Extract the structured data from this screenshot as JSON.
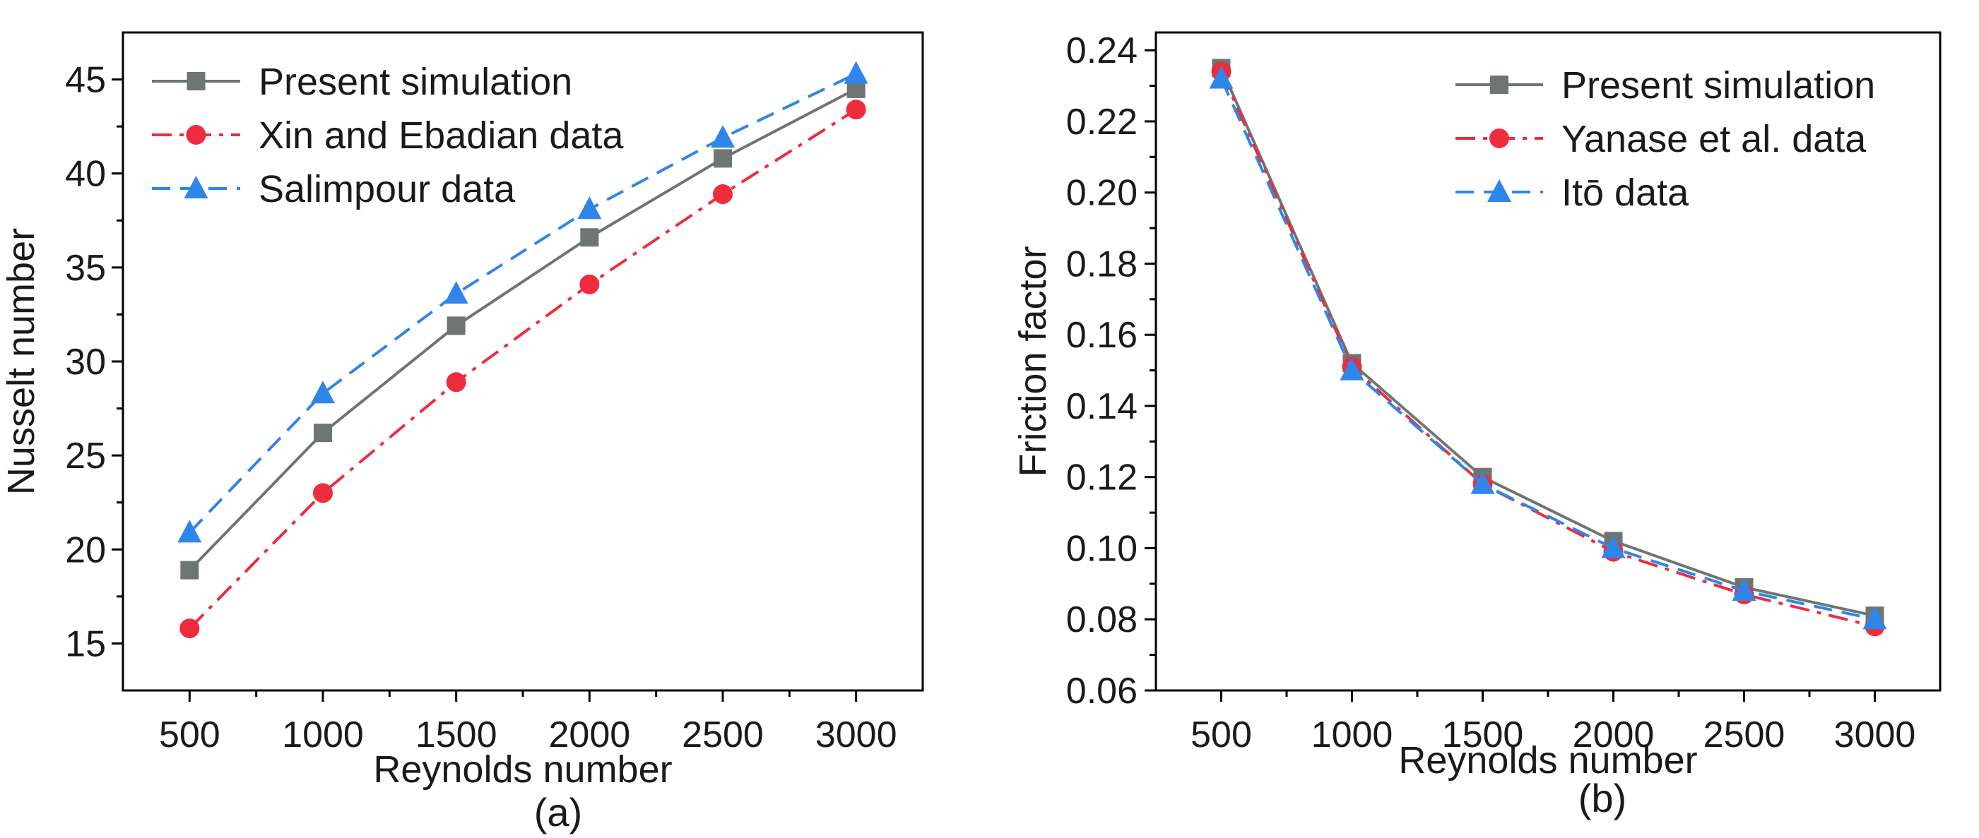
{
  "colors": {
    "present": "#6e7572",
    "red": "#ee2c3d",
    "blue": "#2f86ea",
    "axis": "#000000"
  },
  "chart_data": [
    {
      "type": "line",
      "panel_label": "(a)",
      "xlabel": "Reynolds number",
      "ylabel": "Nusselt number",
      "x": [
        500,
        1000,
        1500,
        2000,
        2500,
        3000
      ],
      "xlim": [
        250,
        3250
      ],
      "ylim": [
        12.5,
        47.5
      ],
      "x_ticks": [
        "500",
        "1000",
        "1500",
        "2000",
        "2500",
        "3000"
      ],
      "y_ticks": [
        "15",
        "20",
        "25",
        "30",
        "35",
        "40",
        "45"
      ],
      "legend_position": "top-left",
      "grid": false,
      "series": [
        {
          "name": "Present simulation",
          "values": [
            18.9,
            26.2,
            31.9,
            36.6,
            40.8,
            44.5
          ],
          "color": "#6e7572",
          "marker": "square",
          "line": "solid"
        },
        {
          "name": "Xin and Ebadian data",
          "values": [
            15.8,
            23.0,
            28.9,
            34.1,
            38.9,
            43.4
          ],
          "color": "#ee2c3d",
          "marker": "circle",
          "line": "dashdot"
        },
        {
          "name": "Salimpour data",
          "values": [
            20.9,
            28.3,
            33.6,
            38.1,
            41.9,
            45.3
          ],
          "color": "#2f86ea",
          "marker": "triangle",
          "line": "dashed"
        }
      ]
    },
    {
      "type": "line",
      "panel_label": "(b)",
      "xlabel": "Reynolds number",
      "ylabel": "Friction factor",
      "x": [
        500,
        1000,
        1500,
        2000,
        2500,
        3000
      ],
      "xlim": [
        250,
        3250
      ],
      "ylim": [
        0.06,
        0.245
      ],
      "x_ticks": [
        "500",
        "1000",
        "1500",
        "2000",
        "2500",
        "3000"
      ],
      "y_ticks": [
        "0.06",
        "0.08",
        "0.10",
        "0.12",
        "0.14",
        "0.16",
        "0.18",
        "0.20",
        "0.22",
        "0.24"
      ],
      "legend_position": "top-right",
      "grid": false,
      "series": [
        {
          "name": "Present simulation",
          "values": [
            0.235,
            0.152,
            0.12,
            0.102,
            0.089,
            0.081
          ],
          "color": "#6e7572",
          "marker": "square",
          "line": "solid"
        },
        {
          "name": "Yanase et al. data",
          "values": [
            0.234,
            0.151,
            0.118,
            0.099,
            0.087,
            0.078
          ],
          "color": "#ee2c3d",
          "marker": "circle",
          "line": "dashdot"
        },
        {
          "name": "Itō data",
          "values": [
            0.232,
            0.15,
            0.118,
            0.1,
            0.088,
            0.08
          ],
          "color": "#2f86ea",
          "marker": "triangle",
          "line": "dashed"
        }
      ]
    }
  ]
}
